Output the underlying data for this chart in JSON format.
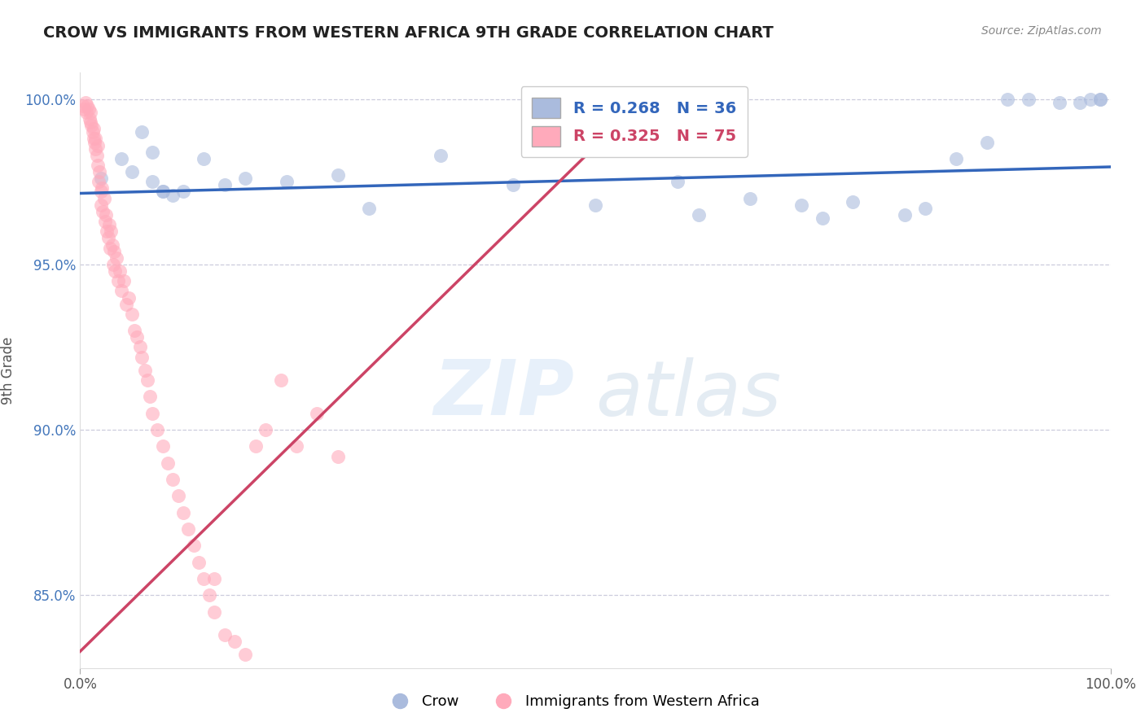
{
  "title": "CROW VS IMMIGRANTS FROM WESTERN AFRICA 9TH GRADE CORRELATION CHART",
  "source_text": "Source: ZipAtlas.com",
  "ylabel": "9th Grade",
  "xlabel": "",
  "xlim": [
    0.0,
    1.0
  ],
  "ylim": [
    0.828,
    1.008
  ],
  "yticks": [
    0.85,
    0.9,
    0.95,
    1.0
  ],
  "ytick_labels": [
    "85.0%",
    "90.0%",
    "95.0%",
    "100.0%"
  ],
  "xticks": [
    0.0,
    1.0
  ],
  "xtick_labels": [
    "0.0%",
    "100.0%"
  ],
  "legend_r_blue": "R = 0.268",
  "legend_n_blue": "N = 36",
  "legend_r_pink": "R = 0.325",
  "legend_n_pink": "N = 75",
  "legend_label_blue": "Crow",
  "legend_label_pink": "Immigrants from Western Africa",
  "blue_color": "#AABBDD",
  "pink_color": "#FFAABB",
  "blue_line_color": "#3366BB",
  "pink_line_color": "#CC4466",
  "watermark_zip": "ZIP",
  "watermark_atlas": "atlas",
  "blue_scatter_x": [
    0.02,
    0.04,
    0.05,
    0.06,
    0.07,
    0.07,
    0.08,
    0.08,
    0.09,
    0.1,
    0.12,
    0.14,
    0.16,
    0.2,
    0.25,
    0.28,
    0.35,
    0.42,
    0.5,
    0.58,
    0.6,
    0.65,
    0.7,
    0.72,
    0.75,
    0.8,
    0.82,
    0.85,
    0.88,
    0.9,
    0.92,
    0.95,
    0.97,
    0.98,
    0.99,
    0.99
  ],
  "blue_scatter_y": [
    0.976,
    0.982,
    0.978,
    0.99,
    0.984,
    0.975,
    0.972,
    0.972,
    0.971,
    0.972,
    0.982,
    0.974,
    0.976,
    0.975,
    0.977,
    0.967,
    0.983,
    0.974,
    0.968,
    0.975,
    0.965,
    0.97,
    0.968,
    0.964,
    0.969,
    0.965,
    0.967,
    0.982,
    0.987,
    1.0,
    1.0,
    0.999,
    0.999,
    1.0,
    1.0,
    1.0
  ],
  "pink_scatter_x": [
    0.003,
    0.004,
    0.005,
    0.006,
    0.007,
    0.008,
    0.009,
    0.01,
    0.01,
    0.011,
    0.012,
    0.013,
    0.013,
    0.014,
    0.015,
    0.015,
    0.016,
    0.017,
    0.017,
    0.018,
    0.019,
    0.02,
    0.02,
    0.021,
    0.022,
    0.023,
    0.024,
    0.025,
    0.026,
    0.027,
    0.028,
    0.029,
    0.03,
    0.031,
    0.032,
    0.033,
    0.034,
    0.035,
    0.037,
    0.038,
    0.04,
    0.042,
    0.045,
    0.047,
    0.05,
    0.053,
    0.055,
    0.058,
    0.06,
    0.063,
    0.065,
    0.068,
    0.07,
    0.075,
    0.08,
    0.085,
    0.09,
    0.095,
    0.1,
    0.105,
    0.11,
    0.115,
    0.12,
    0.125,
    0.13,
    0.14,
    0.15,
    0.16,
    0.17,
    0.18,
    0.195,
    0.21,
    0.23,
    0.25,
    0.13
  ],
  "pink_scatter_y": [
    0.998,
    0.997,
    0.999,
    0.996,
    0.998,
    0.997,
    0.994,
    0.996,
    0.993,
    0.992,
    0.99,
    0.988,
    0.991,
    0.987,
    0.985,
    0.988,
    0.983,
    0.986,
    0.98,
    0.975,
    0.978,
    0.972,
    0.968,
    0.973,
    0.966,
    0.97,
    0.963,
    0.965,
    0.96,
    0.958,
    0.962,
    0.955,
    0.96,
    0.956,
    0.95,
    0.954,
    0.948,
    0.952,
    0.945,
    0.948,
    0.942,
    0.945,
    0.938,
    0.94,
    0.935,
    0.93,
    0.928,
    0.925,
    0.922,
    0.918,
    0.915,
    0.91,
    0.905,
    0.9,
    0.895,
    0.89,
    0.885,
    0.88,
    0.875,
    0.87,
    0.865,
    0.86,
    0.855,
    0.85,
    0.845,
    0.838,
    0.836,
    0.832,
    0.895,
    0.9,
    0.915,
    0.895,
    0.905,
    0.892,
    0.855
  ],
  "blue_trend_x": [
    0.0,
    1.0
  ],
  "blue_trend_y": [
    0.9715,
    0.9795
  ],
  "pink_trend_x": [
    0.0,
    0.55
  ],
  "pink_trend_y": [
    0.833,
    1.001
  ]
}
